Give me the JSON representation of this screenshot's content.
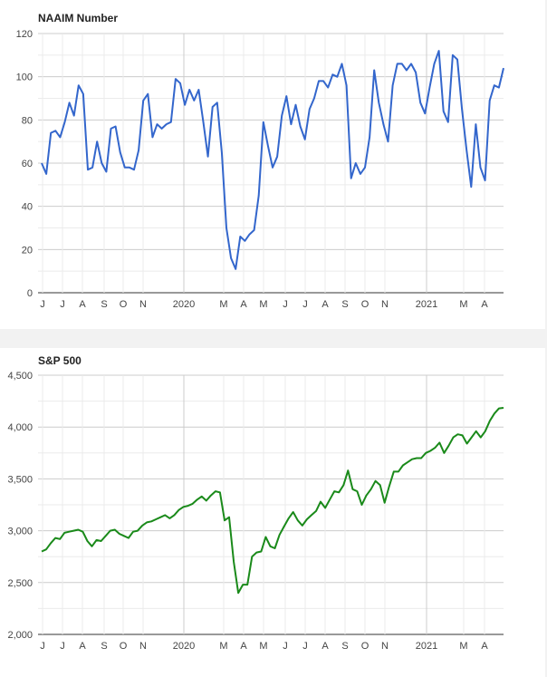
{
  "colors": {
    "naaim_line": "#3366cc",
    "sp_line": "#1a8a1a",
    "grid_minor": "#ebebeb",
    "grid_major": "#cccccc",
    "axis": "#333333"
  },
  "months": [
    "J",
    "J",
    "A",
    "S",
    "O",
    "N",
    "2020",
    "M",
    "A",
    "M",
    "J",
    "J",
    "A",
    "S",
    "O",
    "N",
    "2021",
    "M",
    "A"
  ],
  "chart_data": [
    {
      "type": "line",
      "title": "NAAIM Number",
      "x_tick_labels": [
        "J",
        "J",
        "A",
        "S",
        "O",
        "N",
        "2020",
        "M",
        "A",
        "M",
        "J",
        "J",
        "A",
        "S",
        "O",
        "N",
        "2021",
        "M",
        "A"
      ],
      "y_tick_labels": [
        "0",
        "20",
        "40",
        "60",
        "80",
        "100",
        "120"
      ],
      "ylim": [
        0,
        120
      ],
      "grid": true,
      "series": [
        {
          "values": [
            60,
            55,
            74,
            75,
            72,
            79,
            88,
            82,
            96,
            92,
            57,
            58,
            70,
            60,
            56,
            76,
            77,
            65,
            58,
            58,
            57,
            66,
            89,
            92,
            72,
            78,
            76,
            78,
            79,
            99,
            97,
            87,
            94,
            89,
            94,
            79,
            63,
            86,
            88,
            65,
            30,
            16,
            11,
            26,
            24,
            27,
            29,
            45,
            79,
            68,
            58,
            63,
            82,
            91,
            78,
            87,
            77,
            71,
            85,
            90,
            98,
            98,
            95,
            101,
            100,
            106,
            96,
            53,
            60,
            55,
            58,
            72,
            103,
            88,
            78,
            70,
            96,
            106,
            106,
            103,
            106,
            102,
            88,
            83,
            95,
            106,
            112,
            84,
            79,
            110,
            108,
            85,
            66,
            49,
            78,
            58,
            52,
            89,
            96,
            95,
            104
          ]
        }
      ]
    },
    {
      "type": "line",
      "title": "S&P 500",
      "x_tick_labels": [
        "J",
        "J",
        "A",
        "S",
        "O",
        "N",
        "2020",
        "M",
        "A",
        "M",
        "J",
        "J",
        "A",
        "S",
        "O",
        "N",
        "2021",
        "M",
        "A"
      ],
      "y_tick_labels": [
        "2,000",
        "2,500",
        "3,000",
        "3,500",
        "4,000",
        "4,500"
      ],
      "ylim": [
        2000,
        4500
      ],
      "grid": true,
      "series": [
        {
          "values": [
            2800,
            2820,
            2880,
            2930,
            2920,
            2980,
            2990,
            3000,
            3010,
            2990,
            2900,
            2850,
            2910,
            2900,
            2950,
            3000,
            3010,
            2970,
            2950,
            2930,
            2990,
            3000,
            3050,
            3080,
            3090,
            3110,
            3130,
            3150,
            3120,
            3150,
            3200,
            3230,
            3240,
            3260,
            3300,
            3330,
            3290,
            3340,
            3380,
            3370,
            3100,
            3130,
            2700,
            2400,
            2480,
            2480,
            2750,
            2790,
            2800,
            2940,
            2850,
            2830,
            2960,
            3040,
            3120,
            3180,
            3100,
            3050,
            3110,
            3150,
            3190,
            3280,
            3220,
            3300,
            3380,
            3370,
            3440,
            3580,
            3400,
            3380,
            3250,
            3340,
            3400,
            3480,
            3440,
            3270,
            3430,
            3570,
            3570,
            3630,
            3660,
            3690,
            3700,
            3700,
            3750,
            3770,
            3800,
            3850,
            3750,
            3820,
            3900,
            3930,
            3920,
            3840,
            3900,
            3960,
            3900,
            3960,
            4060,
            4130,
            4180,
            4185
          ]
        }
      ]
    }
  ]
}
